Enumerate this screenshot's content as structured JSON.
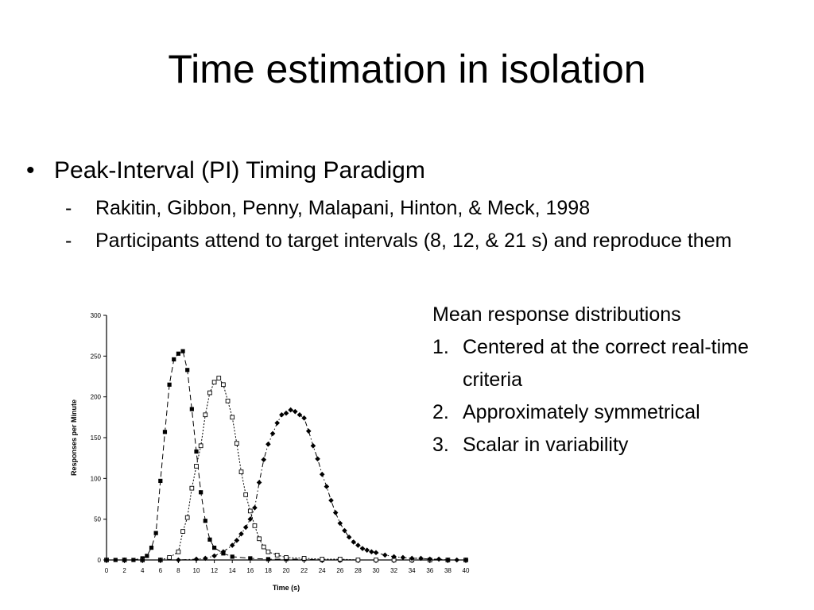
{
  "slide": {
    "title": "Time estimation in isolation",
    "bullet": {
      "text": "Peak-Interval (PI) Timing Paradigm",
      "subitems": [
        "Rakitin, Gibbon, Penny, Malapani, Hinton, & Meck, 1998",
        "Participants attend to target intervals (8, 12, & 21 s) and reproduce them"
      ]
    },
    "side_note": {
      "heading": "Mean response distributions",
      "items": [
        "Centered at the correct real-time criteria",
        "Approximately symmetrical",
        "Scalar in variability"
      ]
    }
  },
  "chart_data": {
    "type": "scatter",
    "title": "",
    "xlabel": "Time (s)",
    "ylabel": "Responses per Minute",
    "xlim": [
      0,
      40
    ],
    "ylim": [
      0,
      300
    ],
    "xticks": [
      0,
      2,
      4,
      6,
      8,
      10,
      12,
      14,
      16,
      18,
      20,
      22,
      24,
      26,
      28,
      30,
      32,
      34,
      36,
      38,
      40
    ],
    "yticks": [
      0,
      50,
      100,
      150,
      200,
      250,
      300
    ],
    "grid": false,
    "series": [
      {
        "marker": "filled-square",
        "line": "dashed",
        "x": [
          0,
          1,
          2,
          3,
          4,
          4.5,
          5,
          5.5,
          6,
          6.5,
          7,
          7.5,
          8,
          8.5,
          9,
          9.5,
          10,
          10.5,
          11,
          11.5,
          12,
          13,
          14,
          16,
          18,
          20,
          22,
          24,
          26,
          28,
          30,
          32,
          34,
          36,
          38,
          40
        ],
        "y": [
          0,
          0,
          0,
          0,
          2,
          5,
          15,
          33,
          97,
          157,
          215,
          246,
          253,
          256,
          233,
          185,
          133,
          83,
          48,
          25,
          15,
          8,
          4,
          2,
          1,
          1,
          1,
          0,
          0,
          0,
          0,
          0,
          0,
          0,
          0,
          0
        ]
      },
      {
        "marker": "open-square",
        "line": "dotted",
        "x": [
          0,
          2,
          4,
          6,
          7,
          8,
          8.5,
          9,
          9.5,
          10,
          10.5,
          11,
          11.5,
          12,
          12.5,
          13,
          13.5,
          14,
          14.5,
          15,
          15.5,
          16,
          16.5,
          17,
          17.5,
          18,
          19,
          20,
          22,
          24,
          26,
          28,
          30,
          32,
          34,
          36,
          38,
          40
        ],
        "y": [
          0,
          0,
          0,
          0,
          3,
          10,
          35,
          52,
          88,
          115,
          140,
          178,
          205,
          218,
          223,
          215,
          195,
          175,
          143,
          108,
          80,
          60,
          42,
          26,
          16,
          10,
          6,
          3,
          2,
          1,
          1,
          0,
          0,
          0,
          0,
          0,
          0,
          0
        ]
      },
      {
        "marker": "filled-diamond",
        "line": "dash-dot",
        "x": [
          0,
          2,
          4,
          6,
          8,
          10,
          11,
          12,
          13,
          14,
          14.5,
          15,
          15.5,
          16,
          16.5,
          17,
          17.5,
          18,
          18.5,
          19,
          19.5,
          20,
          20.5,
          21,
          21.5,
          22,
          22.5,
          23,
          23.5,
          24,
          24.5,
          25,
          25.5,
          26,
          26.5,
          27,
          27.5,
          28,
          28.5,
          29,
          29.5,
          30,
          31,
          32,
          33,
          34,
          35,
          36,
          37,
          38,
          39,
          40
        ],
        "y": [
          0,
          0,
          0,
          0,
          0,
          1,
          2,
          5,
          10,
          18,
          24,
          32,
          40,
          50,
          64,
          95,
          123,
          142,
          155,
          168,
          178,
          180,
          184,
          182,
          178,
          174,
          158,
          140,
          124,
          105,
          90,
          73,
          58,
          45,
          36,
          28,
          22,
          18,
          14,
          12,
          10,
          9,
          6,
          4,
          3,
          2,
          2,
          1,
          1,
          0,
          0,
          0
        ]
      }
    ]
  }
}
